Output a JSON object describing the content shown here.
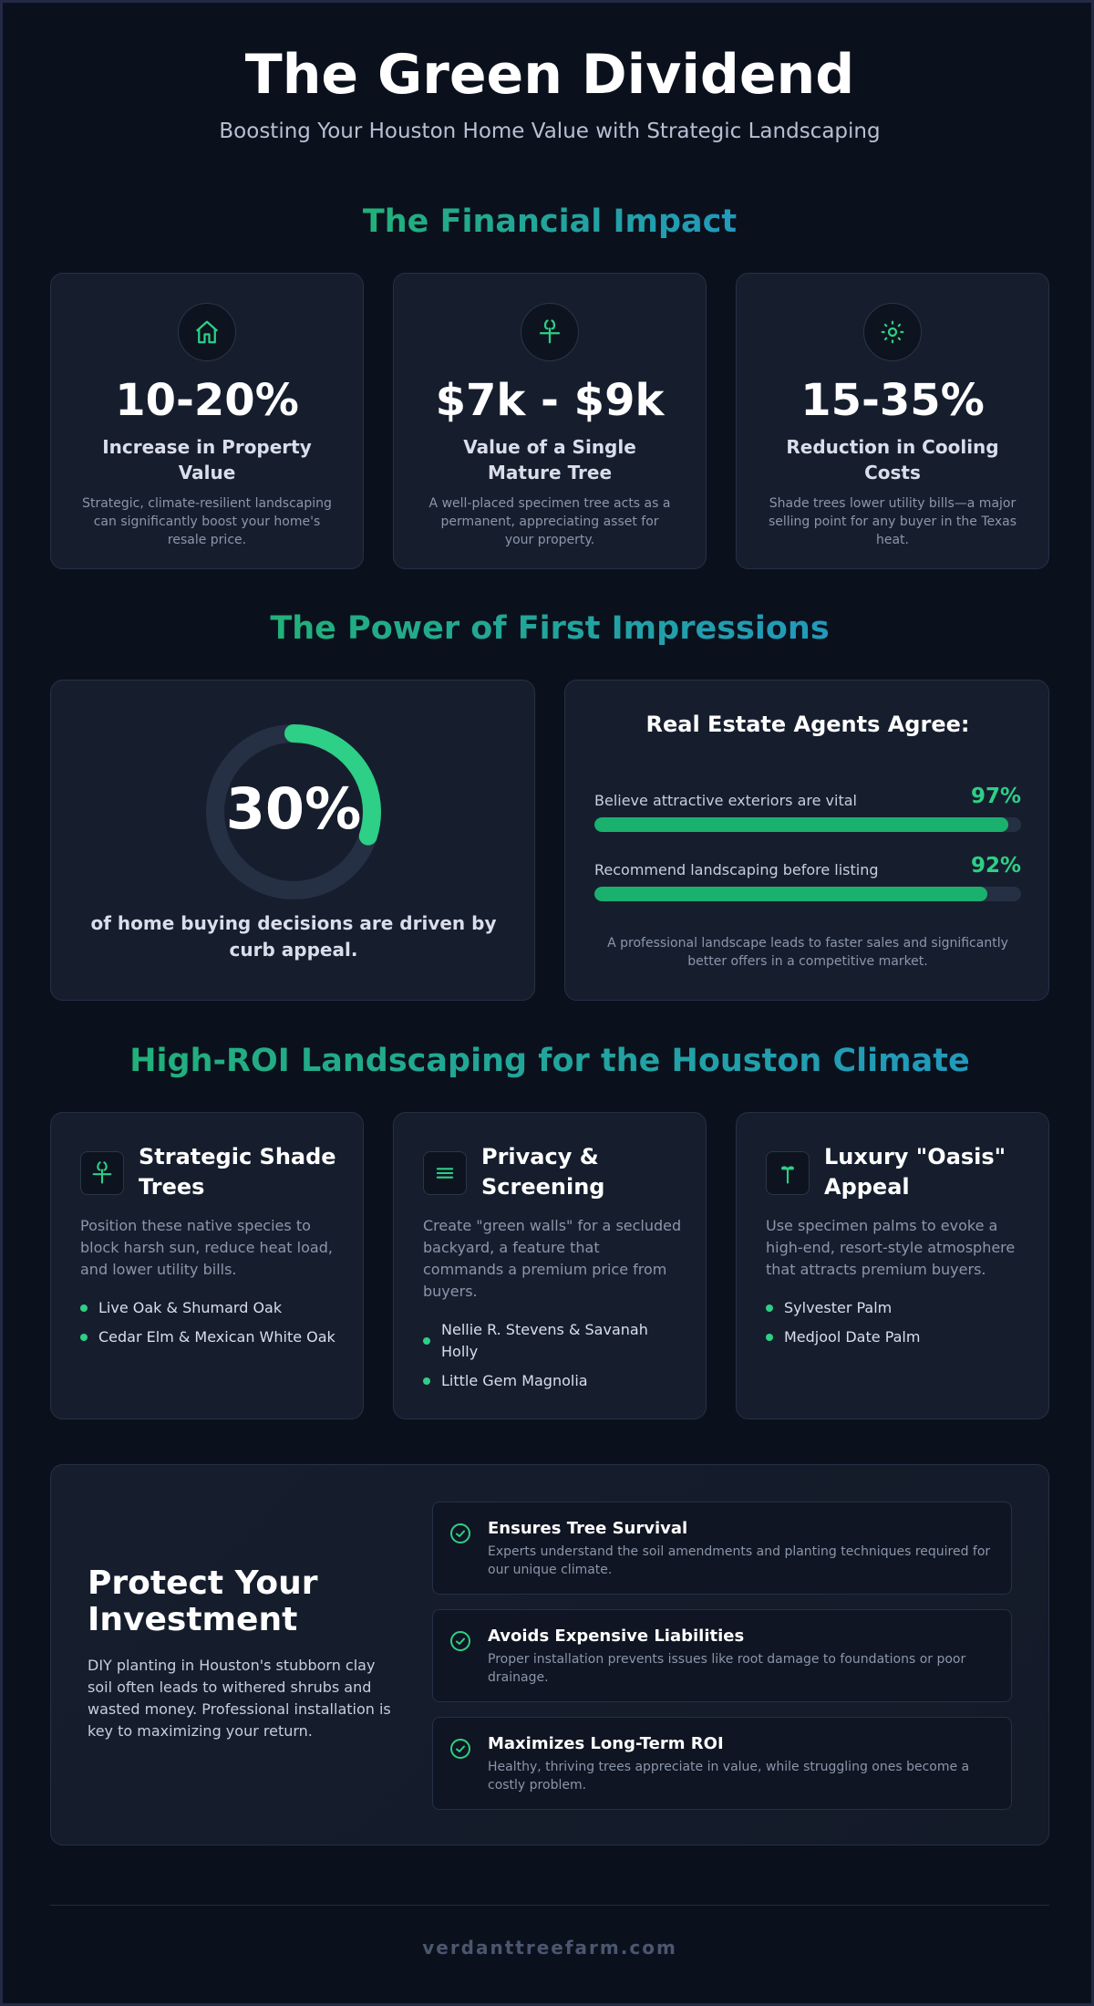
{
  "header": {
    "title": "The Green Dividend",
    "subtitle": "Boosting Your Houston Home Value with Strategic Landscaping"
  },
  "colors": {
    "accent_green": "#2ecf86",
    "accent_blue": "#2299bd",
    "background": "#0b111c",
    "card": "#161e2e"
  },
  "financial": {
    "heading": "The Financial Impact",
    "stats": [
      {
        "icon": "house-icon",
        "value": "10-20%",
        "label": "Increase in Property Value",
        "desc": "Strategic, climate-resilient landscaping can significantly boost your home's resale price."
      },
      {
        "icon": "tree-icon",
        "value": "$7k - $9k",
        "label": "Value of a Single Mature Tree",
        "desc": "A well-placed specimen tree acts as a permanent, appreciating asset for your property."
      },
      {
        "icon": "sun-icon",
        "value": "15-35%",
        "label": "Reduction in Cooling Costs",
        "desc": "Shade trees lower utility bills—a major selling point for any buyer in the Texas heat."
      }
    ]
  },
  "impressions": {
    "heading": "The Power of First Impressions",
    "donut": {
      "value": "30%",
      "fraction": 0.3,
      "caption": "of home buying decisions are driven by curb appeal."
    },
    "agents": {
      "title": "Real Estate Agents Agree:",
      "bars": [
        {
          "label": "Believe attractive exteriors are vital",
          "pct_text": "97%",
          "fraction": 0.97
        },
        {
          "label": "Recommend landscaping before listing",
          "pct_text": "92%",
          "fraction": 0.92
        }
      ],
      "note": "A professional landscape leads to faster sales and significantly better offers in a competitive market."
    }
  },
  "roi": {
    "heading": "High-ROI Landscaping for the Houston Climate",
    "cards": [
      {
        "icon": "tree-icon",
        "title": "Strategic Shade Trees",
        "desc": "Position these native species to block harsh sun, reduce heat load, and lower utility bills.",
        "items": [
          "Live Oak & Shumard Oak",
          "Cedar Elm & Mexican White Oak"
        ]
      },
      {
        "icon": "lines-icon",
        "title": "Privacy & Screening",
        "desc": "Create \"green walls\" for a secluded backyard, a feature that commands a premium price from buyers.",
        "items": [
          "Nellie R. Stevens & Savanah Holly",
          "Little Gem Magnolia"
        ]
      },
      {
        "icon": "palm-icon",
        "title": "Luxury \"Oasis\" Appeal",
        "desc": "Use specimen palms to evoke a high-end, resort-style atmosphere that attracts premium buyers.",
        "items": [
          "Sylvester Palm",
          "Medjool Date Palm"
        ]
      }
    ]
  },
  "protect": {
    "title": "Protect Your Investment",
    "desc": "DIY planting in Houston's stubborn clay soil often leads to withered shrubs and wasted money. Professional installation is key to maximizing your return.",
    "features": [
      {
        "title": "Ensures Tree Survival",
        "desc": "Experts understand the soil amendments and planting techniques required for our unique climate."
      },
      {
        "title": "Avoids Expensive Liabilities",
        "desc": "Proper installation prevents issues like root damage to foundations or poor drainage."
      },
      {
        "title": "Maximizes Long-Term ROI",
        "desc": "Healthy, thriving trees appreciate in value, while struggling ones become a costly problem."
      }
    ]
  },
  "footer": {
    "site": "verdanttreefarm.com"
  }
}
